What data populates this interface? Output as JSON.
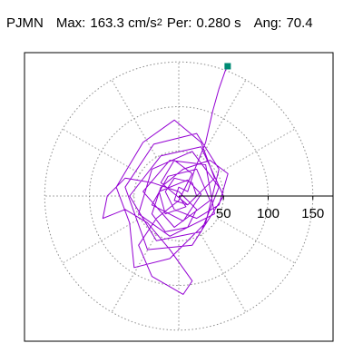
{
  "header": {
    "station": "PJMN",
    "max_label": "Max:",
    "max_value": "163.3 cm/s",
    "max_exp": "2",
    "per_label": "Per:",
    "per_value": "0.280 s",
    "ang_label": "Ang:",
    "ang_value": "70.4"
  },
  "chart_data": {
    "type": "line",
    "subtype": "polar-particle-motion",
    "title": "",
    "xlabel": "",
    "ylabel": "",
    "r_ticks": [
      50,
      100,
      150
    ],
    "r_tick_labels": [
      "50",
      "100",
      "150"
    ],
    "r_max": 175,
    "grid": "dotted polar rings and spokes every 30 degrees",
    "end_marker_color": "#008b74",
    "trace_color": "#9400d3",
    "end_point": {
      "x": 54.7,
      "y": 145.2
    },
    "series": [
      {
        "values_xy": [
          [
            0,
            0
          ],
          [
            8,
            -12
          ],
          [
            -15,
            -20
          ],
          [
            -22,
            5
          ],
          [
            10,
            18
          ],
          [
            25,
            2
          ],
          [
            5,
            -28
          ],
          [
            -30,
            -10
          ],
          [
            -12,
            22
          ],
          [
            20,
            30
          ],
          [
            35,
            -5
          ],
          [
            -5,
            -35
          ],
          [
            -40,
            5
          ],
          [
            -10,
            40
          ],
          [
            30,
            35
          ],
          [
            40,
            -20
          ],
          [
            -10,
            -45
          ],
          [
            -45,
            -20
          ],
          [
            -30,
            30
          ],
          [
            15,
            50
          ],
          [
            45,
            10
          ],
          [
            25,
            -40
          ],
          [
            -25,
            -50
          ],
          [
            -55,
            0
          ],
          [
            -20,
            45
          ],
          [
            25,
            55
          ],
          [
            50,
            0
          ],
          [
            15,
            -55
          ],
          [
            -35,
            -60
          ],
          [
            -60,
            10
          ],
          [
            -28,
            58
          ],
          [
            20,
            70
          ],
          [
            45,
            30
          ],
          [
            30,
            -30
          ],
          [
            -10,
            -70
          ],
          [
            -50,
            -80
          ],
          [
            -55,
            -30
          ],
          [
            -70,
            10
          ],
          [
            -40,
            60
          ],
          [
            -5,
            85
          ],
          [
            25,
            60
          ],
          [
            40,
            20
          ],
          [
            10,
            -10
          ],
          [
            -20,
            15
          ],
          [
            -5,
            40
          ],
          [
            15,
            25
          ],
          [
            0,
            -5
          ],
          [
            -25,
            -25
          ],
          [
            -45,
            -55
          ],
          [
            -30,
            -90
          ],
          [
            5,
            -110
          ],
          [
            15,
            -95
          ],
          [
            -10,
            -60
          ],
          [
            -35,
            -30
          ],
          [
            -60,
            -15
          ],
          [
            -85,
            -25
          ],
          [
            -80,
            0
          ],
          [
            -60,
            20
          ],
          [
            -30,
            15
          ],
          [
            0,
            5
          ],
          [
            20,
            -15
          ],
          [
            10,
            -35
          ],
          [
            -15,
            -40
          ],
          [
            -30,
            -20
          ],
          [
            -20,
            10
          ],
          [
            5,
            30
          ],
          [
            35,
            40
          ],
          [
            55,
            25
          ],
          [
            45,
            -10
          ],
          [
            20,
            -25
          ],
          [
            -5,
            -15
          ],
          [
            -15,
            5
          ],
          [
            -5,
            20
          ],
          [
            15,
            15
          ],
          [
            20,
            0
          ],
          [
            10,
            -10
          ],
          [
            -5,
            -5
          ],
          [
            0,
            10
          ],
          [
            10,
            5
          ],
          [
            18,
            30
          ],
          [
            30,
            60
          ],
          [
            38,
            95
          ],
          [
            45,
            120
          ],
          [
            52,
            140
          ],
          [
            54.7,
            145.2
          ]
        ]
      }
    ]
  }
}
